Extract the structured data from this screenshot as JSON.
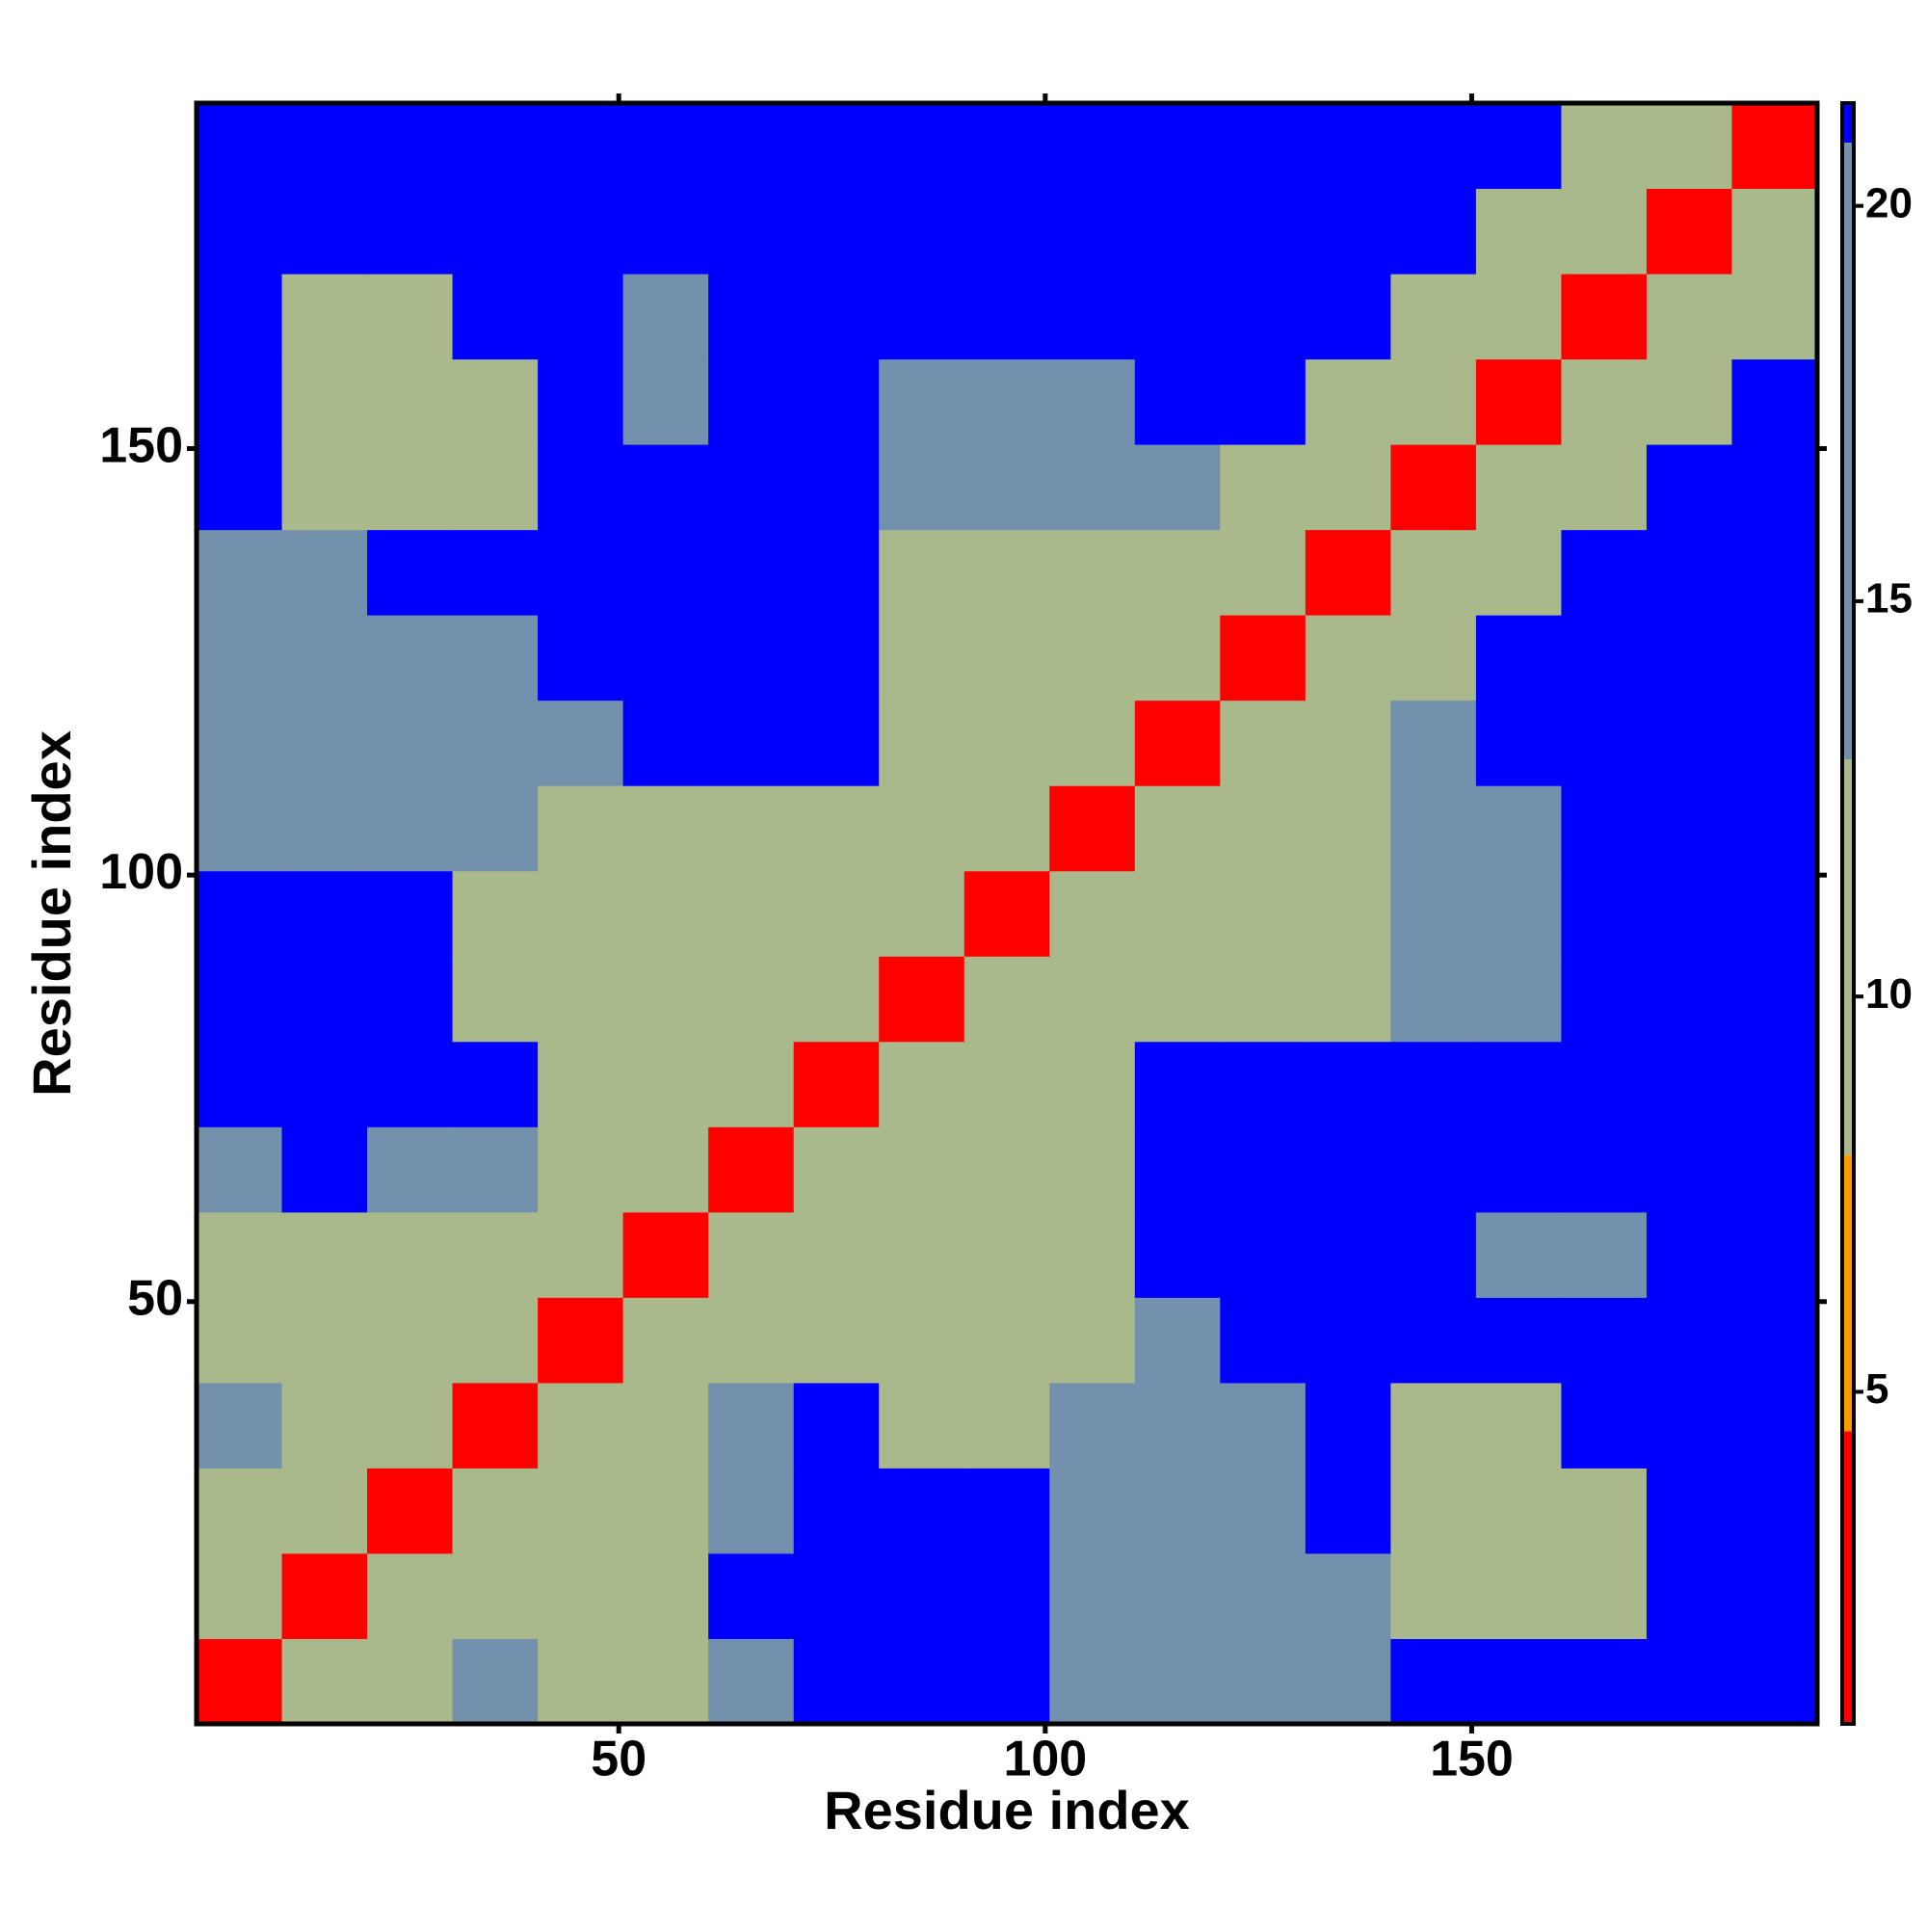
{
  "chart_data": {
    "type": "heatmap",
    "x_label": "Residue index",
    "y_label": "Residue index",
    "x": [
      5.5,
      15.5,
      25.5,
      35.5,
      45.5,
      55.5,
      65.5,
      75.5,
      85.5,
      95.5,
      105.5,
      115.5,
      125.5,
      135.5,
      145.5,
      155.5,
      165.5,
      175.5,
      185.5
    ],
    "y": [
      5.5,
      15.5,
      25.5,
      35.5,
      45.5,
      55.5,
      65.5,
      75.5,
      85.5,
      95.5,
      105.5,
      115.5,
      125.5,
      135.5,
      145.5,
      155.5,
      165.5,
      175.5,
      185.5
    ],
    "z": [
      [
        3,
        9,
        12,
        14,
        13,
        11,
        14,
        21,
        21,
        21,
        14,
        14,
        14,
        14,
        21,
        21,
        21,
        21,
        21
      ],
      [
        9,
        3,
        9,
        12,
        13,
        13,
        21,
        21,
        21,
        21,
        14,
        14,
        14,
        14,
        13,
        13,
        13,
        21,
        21
      ],
      [
        12,
        9,
        3,
        9,
        12,
        13,
        14,
        21,
        21,
        21,
        14,
        14,
        14,
        21,
        13,
        13,
        13,
        21,
        21
      ],
      [
        14,
        12,
        9,
        3,
        9,
        12,
        14,
        21,
        13,
        13,
        14,
        14,
        14,
        21,
        13,
        13,
        21,
        21,
        21
      ],
      [
        13,
        13,
        12,
        9,
        3,
        9,
        11,
        13,
        13,
        13,
        13,
        14,
        21,
        21,
        21,
        21,
        21,
        21,
        21
      ],
      [
        11,
        13,
        13,
        12,
        9,
        3,
        9,
        12,
        13,
        13,
        13,
        21,
        21,
        21,
        21,
        15,
        15,
        21,
        21
      ],
      [
        14,
        21,
        14,
        14,
        11,
        9,
        3,
        9,
        12,
        13,
        13,
        21,
        21,
        21,
        21,
        21,
        21,
        21,
        21
      ],
      [
        21,
        21,
        21,
        21,
        13,
        12,
        9,
        3,
        9,
        12,
        13,
        21,
        21,
        21,
        21,
        21,
        21,
        21,
        21
      ],
      [
        21,
        21,
        21,
        13,
        13,
        13,
        12,
        9,
        3,
        9,
        12,
        13,
        13,
        13,
        14,
        15,
        21,
        21,
        21
      ],
      [
        21,
        21,
        21,
        13,
        13,
        13,
        13,
        12,
        9,
        3,
        9,
        12,
        13,
        13,
        14,
        15,
        21,
        21,
        21
      ],
      [
        14,
        14,
        14,
        14,
        13,
        13,
        13,
        13,
        12,
        9,
        3,
        9,
        12,
        13,
        14,
        15,
        21,
        21,
        21
      ],
      [
        14,
        14,
        14,
        14,
        14,
        21,
        21,
        21,
        13,
        12,
        9,
        3,
        9,
        12,
        14,
        21,
        21,
        21,
        21
      ],
      [
        14,
        14,
        14,
        14,
        21,
        21,
        21,
        21,
        13,
        13,
        12,
        9,
        3,
        9,
        12,
        21,
        21,
        21,
        21
      ],
      [
        14,
        14,
        21,
        21,
        21,
        21,
        21,
        21,
        13,
        13,
        13,
        12,
        9,
        3,
        9,
        12,
        21,
        21,
        21
      ],
      [
        21,
        13,
        13,
        13,
        21,
        21,
        21,
        21,
        14,
        14,
        14,
        14,
        12,
        9,
        3,
        9,
        12,
        21,
        21
      ],
      [
        21,
        13,
        13,
        13,
        21,
        15,
        21,
        21,
        15,
        15,
        15,
        21,
        21,
        12,
        9,
        3,
        9,
        12,
        21
      ],
      [
        21,
        13,
        13,
        21,
        21,
        15,
        21,
        21,
        21,
        21,
        21,
        21,
        21,
        21,
        12,
        9,
        3,
        9,
        12
      ],
      [
        21,
        21,
        21,
        21,
        21,
        21,
        21,
        21,
        21,
        21,
        21,
        21,
        21,
        21,
        21,
        12,
        9,
        3,
        9
      ],
      [
        21,
        21,
        21,
        21,
        21,
        21,
        21,
        21,
        21,
        21,
        21,
        21,
        21,
        21,
        21,
        21,
        12,
        9,
        3
      ]
    ],
    "cell_size": 10,
    "xlim": [
      0.5,
      190.5
    ],
    "ylim": [
      0.5,
      190.5
    ],
    "xticks": [
      50,
      100,
      150
    ],
    "yticks": [
      50,
      100,
      150
    ],
    "colorbar": {
      "zlim": [
        0.8,
        21.3
      ],
      "ticks": [
        5,
        10,
        15,
        20
      ],
      "bins": [
        {
          "upper": 4.5,
          "color": "#ff0000"
        },
        {
          "upper": 8,
          "color": "#ff9900"
        },
        {
          "upper": 13,
          "color": "#a9b98b"
        },
        {
          "upper": 20.8,
          "color": "#7391ad"
        },
        {
          "upper": 21.3,
          "color": "#0000ff"
        }
      ]
    }
  }
}
